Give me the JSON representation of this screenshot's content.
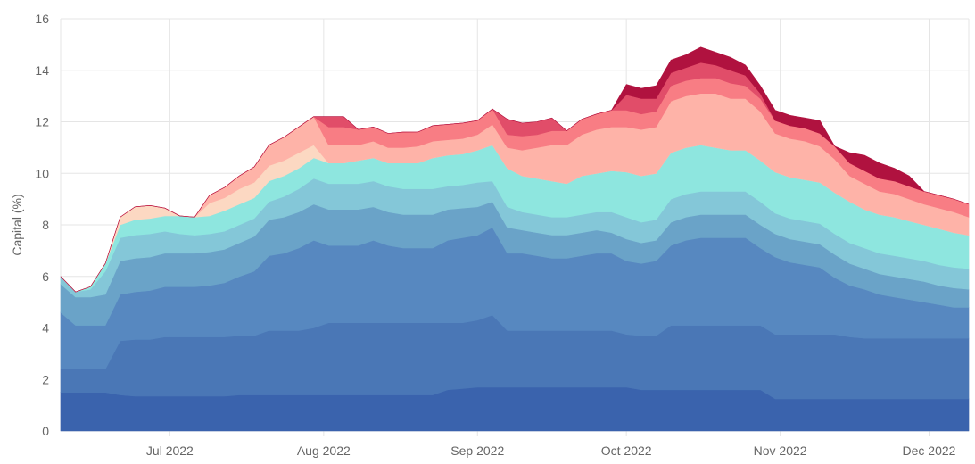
{
  "chart_data": {
    "type": "area",
    "stacked": true,
    "title": "",
    "xlabel": "",
    "ylabel": "Capital (%)",
    "ylim": [
      0,
      16
    ],
    "yticks": [
      "0",
      "2",
      "4",
      "6",
      "8",
      "10",
      "12",
      "14",
      "16"
    ],
    "xlim": [
      "2022-06-09",
      "2022-12-09"
    ],
    "xticks": [
      {
        "date": "2022-07-01",
        "label": "Jul 2022"
      },
      {
        "date": "2022-08-01",
        "label": "Aug 2022"
      },
      {
        "date": "2022-09-01",
        "label": "Sep 2022"
      },
      {
        "date": "2022-10-01",
        "label": "Oct 2022"
      },
      {
        "date": "2022-11-01",
        "label": "Nov 2022"
      },
      {
        "date": "2022-12-01",
        "label": "Dec 2022"
      }
    ],
    "grid": true,
    "legend": "none",
    "x": [
      "2022-06-09",
      "2022-06-12",
      "2022-06-15",
      "2022-06-18",
      "2022-06-21",
      "2022-06-24",
      "2022-06-27",
      "2022-06-30",
      "2022-07-03",
      "2022-07-06",
      "2022-07-09",
      "2022-07-12",
      "2022-07-15",
      "2022-07-18",
      "2022-07-21",
      "2022-07-24",
      "2022-07-27",
      "2022-07-30",
      "2022-08-02",
      "2022-08-05",
      "2022-08-08",
      "2022-08-11",
      "2022-08-14",
      "2022-08-17",
      "2022-08-20",
      "2022-08-23",
      "2022-08-26",
      "2022-08-29",
      "2022-09-01",
      "2022-09-04",
      "2022-09-07",
      "2022-09-10",
      "2022-09-13",
      "2022-09-16",
      "2022-09-19",
      "2022-09-22",
      "2022-09-25",
      "2022-09-28",
      "2022-10-01",
      "2022-10-04",
      "2022-10-07",
      "2022-10-10",
      "2022-10-13",
      "2022-10-16",
      "2022-10-19",
      "2022-10-22",
      "2022-10-25",
      "2022-10-28",
      "2022-10-31",
      "2022-11-03",
      "2022-11-06",
      "2022-11-09",
      "2022-11-12",
      "2022-11-15",
      "2022-11-18",
      "2022-11-21",
      "2022-11-24",
      "2022-11-27",
      "2022-11-30",
      "2022-12-03",
      "2022-12-06",
      "2022-12-09"
    ],
    "series": [
      {
        "color": "#3a63ad",
        "values": [
          1.5,
          1.5,
          1.5,
          1.5,
          1.4,
          1.35,
          1.35,
          1.35,
          1.35,
          1.35,
          1.35,
          1.35,
          1.4,
          1.4,
          1.4,
          1.4,
          1.4,
          1.4,
          1.4,
          1.4,
          1.4,
          1.4,
          1.4,
          1.4,
          1.4,
          1.4,
          1.6,
          1.65,
          1.7,
          1.7,
          1.7,
          1.7,
          1.7,
          1.7,
          1.7,
          1.7,
          1.7,
          1.7,
          1.7,
          1.6,
          1.6,
          1.6,
          1.6,
          1.6,
          1.6,
          1.6,
          1.6,
          1.6,
          1.25,
          1.25,
          1.25,
          1.25,
          1.25,
          1.25,
          1.25,
          1.25,
          1.25,
          1.25,
          1.25,
          1.25,
          1.25,
          1.25
        ]
      },
      {
        "color": "#4a77b6",
        "values": [
          0.9,
          0.9,
          0.9,
          0.9,
          2.1,
          2.2,
          2.2,
          2.3,
          2.3,
          2.3,
          2.3,
          2.3,
          2.3,
          2.3,
          2.5,
          2.5,
          2.5,
          2.6,
          2.8,
          2.8,
          2.8,
          2.8,
          2.8,
          2.8,
          2.8,
          2.8,
          2.6,
          2.55,
          2.6,
          2.8,
          2.2,
          2.2,
          2.2,
          2.2,
          2.2,
          2.2,
          2.2,
          2.2,
          2.05,
          2.1,
          2.1,
          2.5,
          2.5,
          2.5,
          2.5,
          2.5,
          2.5,
          2.5,
          2.5,
          2.5,
          2.5,
          2.5,
          2.5,
          2.4,
          2.35,
          2.35,
          2.35,
          2.35,
          2.35,
          2.35,
          2.35,
          2.35
        ]
      },
      {
        "color": "#5788c0",
        "values": [
          2.2,
          1.7,
          1.7,
          1.7,
          1.8,
          1.85,
          1.9,
          1.95,
          1.95,
          1.95,
          2.0,
          2.1,
          2.3,
          2.5,
          2.9,
          3.0,
          3.2,
          3.4,
          3.0,
          3.0,
          3.0,
          3.2,
          3.0,
          2.9,
          2.9,
          2.9,
          3.2,
          3.3,
          3.3,
          3.4,
          3.0,
          3.0,
          2.9,
          2.8,
          2.8,
          2.9,
          3.0,
          3.0,
          2.85,
          2.8,
          2.9,
          3.1,
          3.3,
          3.4,
          3.4,
          3.4,
          3.4,
          3.0,
          3.0,
          2.8,
          2.7,
          2.6,
          2.2,
          2.0,
          1.9,
          1.7,
          1.6,
          1.5,
          1.4,
          1.3,
          1.2,
          1.2
        ]
      },
      {
        "color": "#6aa3c8",
        "values": [
          1.1,
          1.1,
          1.1,
          1.2,
          1.3,
          1.3,
          1.3,
          1.3,
          1.3,
          1.3,
          1.3,
          1.3,
          1.3,
          1.35,
          1.4,
          1.4,
          1.4,
          1.4,
          1.4,
          1.4,
          1.4,
          1.3,
          1.3,
          1.3,
          1.3,
          1.3,
          1.2,
          1.15,
          1.1,
          1.0,
          1.0,
          0.9,
          0.9,
          0.9,
          0.9,
          0.9,
          0.9,
          0.8,
          0.85,
          0.8,
          0.8,
          0.9,
          0.9,
          0.9,
          0.9,
          0.9,
          0.9,
          0.9,
          0.9,
          0.9,
          0.9,
          0.9,
          0.9,
          0.85,
          0.8,
          0.8,
          0.8,
          0.8,
          0.8,
          0.75,
          0.75,
          0.7
        ]
      },
      {
        "color": "#84c7d8",
        "values": [
          0.3,
          0.2,
          0.3,
          0.9,
          0.9,
          0.9,
          0.9,
          0.85,
          0.75,
          0.7,
          0.7,
          0.7,
          0.7,
          0.7,
          0.7,
          0.8,
          0.9,
          1.0,
          1.0,
          1.0,
          1.0,
          1.0,
          1.0,
          1.0,
          1.0,
          1.0,
          0.9,
          0.9,
          0.95,
          0.8,
          0.8,
          0.7,
          0.7,
          0.7,
          0.7,
          0.7,
          0.7,
          0.8,
          0.85,
          0.8,
          0.8,
          0.9,
          0.9,
          0.9,
          0.9,
          0.9,
          0.9,
          0.9,
          0.8,
          0.8,
          0.8,
          0.8,
          0.8,
          0.8,
          0.8,
          0.8,
          0.8,
          0.8,
          0.8,
          0.8,
          0.8,
          0.8
        ]
      },
      {
        "color": "#8ee6df",
        "values": [
          0,
          0,
          0.1,
          0.3,
          0.5,
          0.6,
          0.6,
          0.6,
          0.7,
          0.7,
          0.7,
          0.8,
          0.8,
          0.8,
          0.8,
          0.8,
          0.8,
          0.8,
          0.8,
          0.8,
          0.9,
          0.9,
          0.9,
          1.0,
          1.0,
          1.2,
          1.2,
          1.2,
          1.25,
          1.4,
          1.5,
          1.4,
          1.4,
          1.4,
          1.3,
          1.5,
          1.5,
          1.6,
          1.75,
          1.8,
          1.8,
          1.8,
          1.8,
          1.8,
          1.7,
          1.6,
          1.6,
          1.6,
          1.6,
          1.6,
          1.6,
          1.6,
          1.6,
          1.6,
          1.5,
          1.5,
          1.5,
          1.45,
          1.4,
          1.4,
          1.35,
          1.3
        ]
      },
      {
        "color": "#fcd8c2",
        "values": [
          0,
          0,
          0,
          0,
          0.3,
          0.5,
          0.5,
          0.3,
          0,
          0,
          0.5,
          0.5,
          0.6,
          0.6,
          0.6,
          0.6,
          0.6,
          0.5,
          0,
          0,
          0,
          0,
          0,
          0,
          0,
          0,
          0,
          0,
          0,
          0,
          0,
          0,
          0,
          0,
          0,
          0,
          0,
          0,
          0,
          0,
          0,
          0,
          0,
          0,
          0,
          0,
          0,
          0,
          0,
          0,
          0,
          0,
          0,
          0,
          0,
          0,
          0,
          0,
          0,
          0,
          0,
          0
        ]
      },
      {
        "color": "#feb3a8",
        "values": [
          0,
          0,
          0,
          0,
          0,
          0,
          0,
          0,
          0,
          0,
          0.3,
          0.4,
          0.5,
          0.6,
          0.8,
          0.9,
          1.0,
          1.1,
          0.7,
          0.7,
          0.6,
          0.65,
          0.6,
          0.6,
          0.65,
          0.65,
          0.6,
          0.6,
          0.6,
          0.8,
          0.8,
          1.0,
          1.2,
          1.4,
          1.5,
          1.6,
          1.7,
          1.7,
          1.75,
          1.8,
          1.8,
          2.0,
          2.0,
          2.0,
          2.1,
          2.0,
          2.0,
          1.9,
          1.5,
          1.5,
          1.5,
          1.4,
          1.3,
          1.0,
          1.0,
          0.9,
          0.9,
          0.85,
          0.8,
          0.8,
          0.8,
          0.7
        ]
      },
      {
        "color": "#f87d84",
        "values": [
          0,
          0,
          0,
          0,
          0,
          0,
          0,
          0,
          0,
          0,
          0,
          0,
          0,
          0,
          0,
          0,
          0,
          0,
          0.7,
          0.7,
          0.6,
          0.55,
          0.55,
          0.6,
          0.55,
          0.6,
          0.6,
          0.6,
          0.55,
          0.6,
          0.5,
          0.55,
          0.5,
          0.55,
          0.55,
          0.6,
          0.6,
          0.65,
          0.65,
          0.6,
          0.6,
          0.6,
          0.6,
          0.6,
          0.6,
          0.6,
          0.5,
          0.5,
          0.5,
          0.5,
          0.5,
          0.5,
          0.5,
          0.5,
          0.5,
          0.5,
          0.5,
          0.5,
          0.5,
          0.5,
          0.5,
          0.5
        ]
      },
      {
        "color": "#e14d69",
        "values": [
          0,
          0,
          0,
          0,
          0,
          0,
          0,
          0,
          0,
          0,
          0,
          0,
          0,
          0,
          0,
          0,
          0,
          0,
          0.4,
          0.4,
          0,
          0,
          0,
          0,
          0,
          0,
          0,
          0,
          0,
          0,
          0.6,
          0.5,
          0.5,
          0.5,
          0,
          0,
          0,
          0,
          0.6,
          0.6,
          0.5,
          0.5,
          0.5,
          0.6,
          0.5,
          0.5,
          0.4,
          0.2,
          0,
          0,
          0,
          0,
          0,
          0,
          0,
          0,
          0,
          0,
          0,
          0,
          0,
          0
        ]
      },
      {
        "color": "#b0123f",
        "values": [
          0,
          0,
          0,
          0,
          0,
          0,
          0,
          0,
          0,
          0,
          0,
          0,
          0,
          0,
          0,
          0,
          0,
          0,
          0,
          0,
          0,
          0,
          0,
          0,
          0,
          0,
          0,
          0,
          0,
          0,
          0,
          0,
          0,
          0,
          0,
          0,
          0,
          0,
          0.4,
          0.4,
          0.5,
          0.5,
          0.5,
          0.6,
          0.5,
          0.5,
          0.4,
          0.3,
          0.4,
          0.4,
          0.4,
          0.5,
          0,
          0.4,
          0.6,
          0.6,
          0.5,
          0.4,
          0,
          0,
          0,
          0
        ]
      }
    ]
  }
}
